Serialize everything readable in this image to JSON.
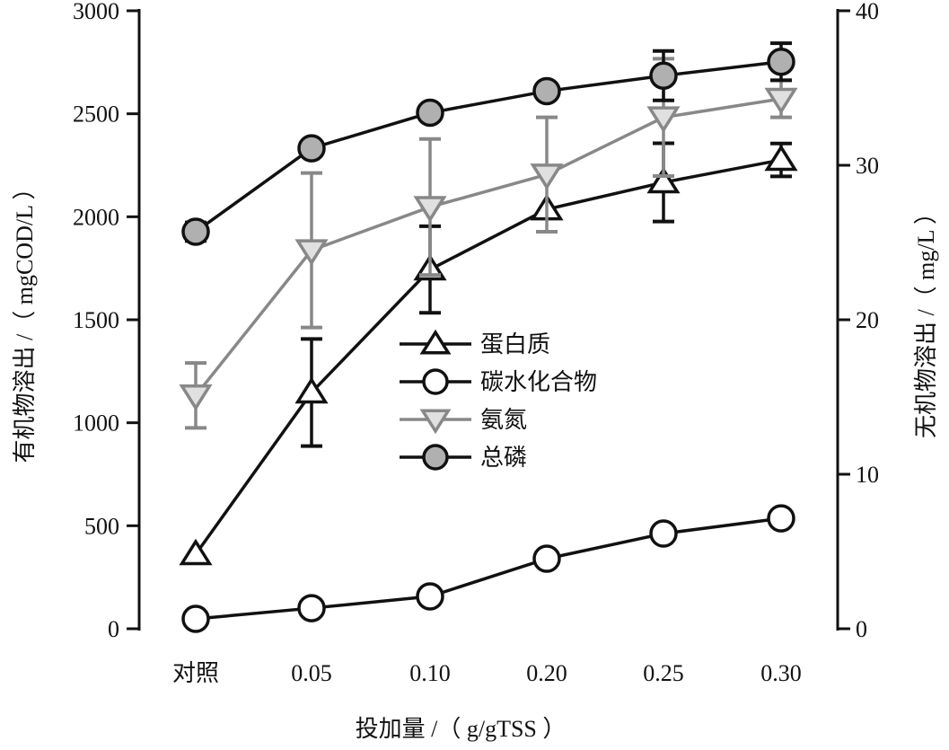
{
  "chart_data": {
    "type": "line",
    "xlabel": "投加量 /（ g/gTSS ）",
    "ylabel_left": "有机物溶出 /（ mgCOD/L ）",
    "ylabel_right": "无机物溶出 /（ mg/L ）",
    "categories": [
      "对照",
      "0.05",
      "0.10",
      "0.20",
      "0.25",
      "0.30"
    ],
    "ylim_left": [
      0,
      3000
    ],
    "yticks_left": [
      "0",
      "500",
      "1000",
      "1500",
      "2000",
      "2500",
      "3000"
    ],
    "ylim_right": [
      0,
      40
    ],
    "yticks_right": [
      "0",
      "10",
      "20",
      "30",
      "40"
    ],
    "grid": false,
    "legend_position": "center",
    "series": [
      {
        "name": "蛋白质",
        "axis": "left",
        "marker": "triangle-up",
        "color": "#111111",
        "fill": "#ffffff",
        "values": [
          362,
          1147,
          1744,
          2036,
          2167,
          2276
        ],
        "errors": [
          0,
          260,
          210,
          0,
          190,
          80
        ]
      },
      {
        "name": "碳水化合物",
        "axis": "left",
        "marker": "circle",
        "color": "#111111",
        "fill": "#ffffff",
        "values": [
          48,
          100,
          157,
          340,
          462,
          536
        ],
        "errors": [
          0,
          0,
          0,
          0,
          0,
          0
        ]
      },
      {
        "name": "氨氮",
        "axis": "right",
        "marker": "triangle-down",
        "color": "#888888",
        "fill": "#e0e0e0",
        "values": [
          15.1,
          24.5,
          27.3,
          29.4,
          33.1,
          34.3
        ],
        "errors": [
          2.1,
          5.0,
          4.4,
          3.7,
          3.8,
          1.2
        ]
      },
      {
        "name": "总磷",
        "axis": "right",
        "marker": "circle",
        "color": "#111111",
        "fill": "#b0b0b0",
        "values": [
          25.7,
          31.1,
          33.4,
          34.8,
          35.8,
          36.7
        ],
        "errors": [
          0.6,
          0,
          0,
          0,
          1.6,
          1.2
        ]
      }
    ]
  }
}
